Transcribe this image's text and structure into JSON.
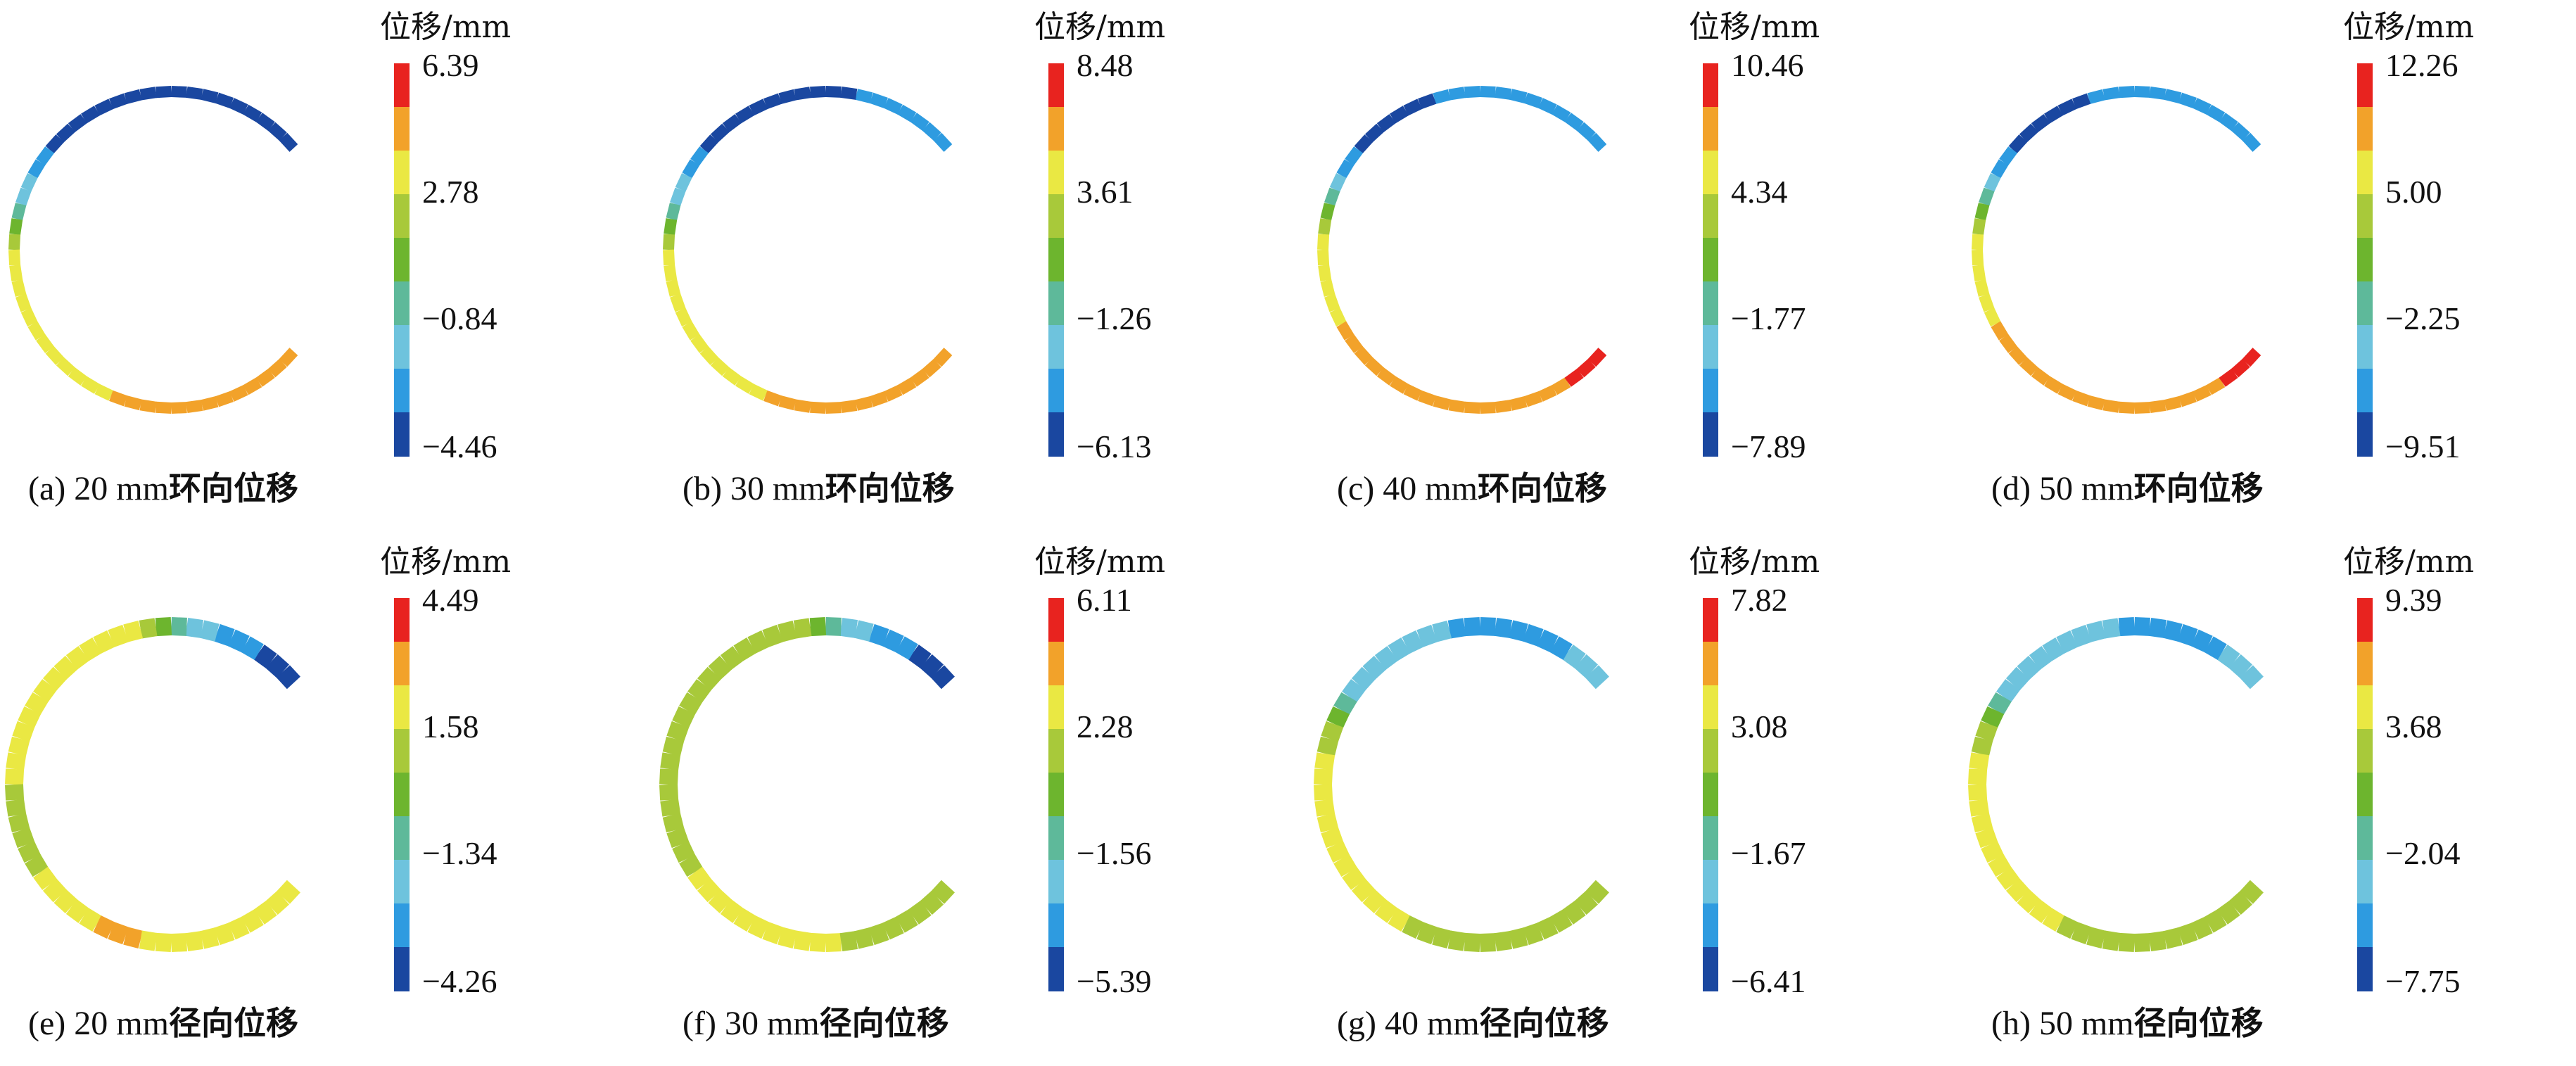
{
  "unit_label": "位移/mm",
  "palette": [
    "#1a47a0",
    "#2e9be0",
    "#6ec3dd",
    "#5eb99a",
    "#6db52e",
    "#a8c93a",
    "#eae843",
    "#f2a22a",
    "#e8231f"
  ],
  "panels": [
    {
      "id": "a",
      "caption_prefix": "(a) 20 mm",
      "caption_cjk": "环向位移",
      "ticks": [
        "6.39",
        "2.78",
        "−0.84",
        "−4.46"
      ],
      "colors": [
        0,
        0,
        0,
        0,
        0,
        0,
        0,
        0,
        0,
        0,
        0,
        0,
        0,
        0,
        0,
        0,
        0,
        0,
        1,
        1,
        2,
        2,
        3,
        4,
        5,
        6,
        6,
        6,
        6,
        6,
        6,
        6,
        6,
        6,
        6,
        6,
        6,
        7,
        7,
        7,
        7,
        7,
        7,
        7,
        7,
        7,
        7,
        7,
        7,
        7
      ]
    },
    {
      "id": "b",
      "caption_prefix": "(b) 30 mm",
      "caption_cjk": "环向位移",
      "ticks": [
        "8.48",
        "3.61",
        "−1.26",
        "−6.13"
      ],
      "colors": [
        1,
        1,
        1,
        1,
        1,
        1,
        1,
        0,
        0,
        0,
        0,
        0,
        0,
        0,
        0,
        0,
        0,
        0,
        1,
        1,
        2,
        2,
        3,
        4,
        5,
        6,
        6,
        6,
        6,
        6,
        6,
        6,
        6,
        6,
        6,
        6,
        6,
        7,
        7,
        7,
        7,
        7,
        7,
        7,
        7,
        7,
        7,
        7,
        7,
        7
      ]
    },
    {
      "id": "c",
      "caption_prefix": "(c) 40 mm",
      "caption_cjk": "环向位移",
      "ticks": [
        "10.46",
        "4.34",
        "−1.77",
        "−7.89"
      ],
      "colors": [
        1,
        1,
        1,
        1,
        1,
        1,
        1,
        1,
        1,
        1,
        1,
        1,
        0,
        0,
        0,
        0,
        0,
        0,
        1,
        1,
        2,
        3,
        4,
        5,
        6,
        6,
        6,
        6,
        6,
        6,
        7,
        7,
        7,
        7,
        7,
        7,
        7,
        7,
        7,
        7,
        7,
        7,
        7,
        7,
        7,
        7,
        7,
        8,
        8,
        8
      ]
    },
    {
      "id": "d",
      "caption_prefix": "(d) 50 mm",
      "caption_cjk": "环向位移",
      "ticks": [
        "12.26",
        "5.00",
        "−2.25",
        "−9.51"
      ],
      "colors": [
        1,
        1,
        1,
        1,
        1,
        1,
        1,
        1,
        1,
        1,
        1,
        1,
        0,
        0,
        0,
        0,
        0,
        0,
        1,
        1,
        2,
        3,
        4,
        5,
        6,
        6,
        6,
        6,
        6,
        6,
        7,
        7,
        7,
        7,
        7,
        7,
        7,
        7,
        7,
        7,
        7,
        7,
        7,
        7,
        7,
        7,
        7,
        8,
        8,
        8
      ]
    },
    {
      "id": "e",
      "caption_prefix": "(e) 20 mm",
      "caption_cjk": "径向位移",
      "ticks": [
        "4.49",
        "1.58",
        "−1.34",
        "−4.26"
      ],
      "colors": [
        0,
        0,
        0,
        1,
        1,
        1,
        2,
        2,
        3,
        4,
        5,
        6,
        6,
        6,
        6,
        6,
        6,
        6,
        6,
        6,
        6,
        6,
        6,
        6,
        6,
        5,
        5,
        5,
        5,
        5,
        5,
        6,
        6,
        6,
        6,
        6,
        7,
        7,
        7,
        6,
        6,
        6,
        6,
        6,
        6,
        6,
        6,
        6,
        6,
        6
      ]
    },
    {
      "id": "f",
      "caption_prefix": "(f) 30 mm",
      "caption_cjk": "径向位移",
      "ticks": [
        "6.11",
        "2.28",
        "−1.56",
        "−5.39"
      ],
      "colors": [
        0,
        0,
        0,
        1,
        1,
        1,
        2,
        2,
        3,
        4,
        5,
        5,
        5,
        5,
        5,
        5,
        5,
        5,
        5,
        5,
        5,
        5,
        5,
        5,
        5,
        5,
        5,
        5,
        5,
        5,
        5,
        6,
        6,
        6,
        6,
        6,
        6,
        6,
        6,
        6,
        6,
        6,
        5,
        5,
        5,
        5,
        5,
        5,
        5,
        5
      ]
    },
    {
      "id": "g",
      "caption_prefix": "(g) 40 mm",
      "caption_cjk": "径向位移",
      "ticks": [
        "7.82",
        "3.08",
        "−1.67",
        "−6.41"
      ],
      "colors": [
        2,
        2,
        2,
        1,
        1,
        1,
        1,
        1,
        1,
        1,
        1,
        2,
        2,
        2,
        2,
        2,
        2,
        2,
        2,
        3,
        4,
        5,
        5,
        6,
        6,
        6,
        6,
        6,
        6,
        6,
        6,
        6,
        6,
        6,
        6,
        6,
        5,
        5,
        5,
        5,
        5,
        5,
        5,
        5,
        5,
        5,
        5,
        5,
        5,
        5
      ]
    },
    {
      "id": "h",
      "caption_prefix": "(h) 50 mm",
      "caption_cjk": "径向位移",
      "ticks": [
        "9.39",
        "3.68",
        "−2.04",
        "−7.75"
      ],
      "colors": [
        2,
        2,
        2,
        1,
        1,
        1,
        1,
        1,
        1,
        1,
        2,
        2,
        2,
        2,
        2,
        2,
        2,
        2,
        2,
        3,
        4,
        5,
        5,
        6,
        6,
        6,
        6,
        6,
        6,
        6,
        6,
        6,
        6,
        6,
        6,
        6,
        5,
        5,
        5,
        5,
        5,
        5,
        5,
        5,
        5,
        5,
        5,
        5,
        5,
        5
      ]
    }
  ]
}
